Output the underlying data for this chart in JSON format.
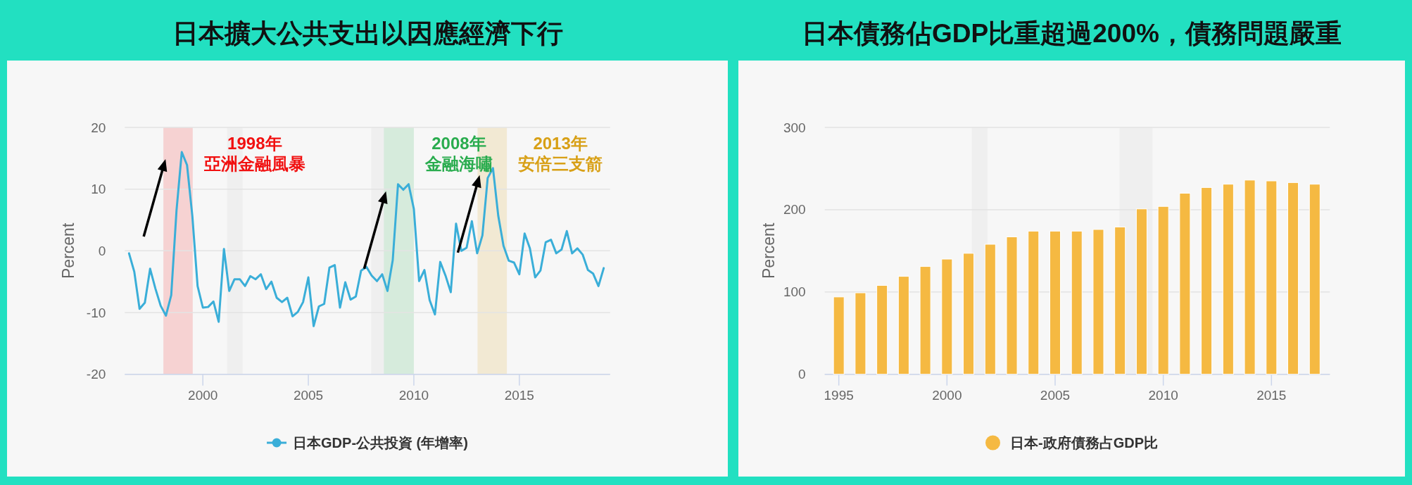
{
  "chart_data": [
    {
      "type": "line",
      "title": "日本擴大公共支出以因應經濟下行",
      "ylabel": "Percent",
      "legend": "bottom",
      "grid": "y",
      "x": [
        1996.5,
        1996.75,
        1997,
        1997.25,
        1997.5,
        1997.75,
        1998,
        1998.25,
        1998.5,
        1998.75,
        1999,
        1999.25,
        1999.5,
        1999.75,
        2000,
        2000.25,
        2000.5,
        2000.75,
        2001,
        2001.25,
        2001.5,
        2001.75,
        2002,
        2002.25,
        2002.5,
        2002.75,
        2003,
        2003.25,
        2003.5,
        2003.75,
        2004,
        2004.25,
        2004.5,
        2004.75,
        2005,
        2005.25,
        2005.5,
        2005.75,
        2006,
        2006.25,
        2006.5,
        2006.75,
        2007,
        2007.25,
        2007.5,
        2007.75,
        2008,
        2008.25,
        2008.5,
        2008.75,
        2009,
        2009.25,
        2009.5,
        2009.75,
        2010,
        2010.25,
        2010.5,
        2010.75,
        2011,
        2011.25,
        2011.5,
        2011.75,
        2012,
        2012.25,
        2012.5,
        2012.75,
        2013,
        2013.25,
        2013.5,
        2013.75,
        2014,
        2014.25,
        2014.5,
        2014.75,
        2015,
        2015.25,
        2015.5,
        2015.75,
        2016,
        2016.25,
        2016.5,
        2016.75,
        2017,
        2017.25,
        2017.5,
        2017.75,
        2018,
        2018.25,
        2018.5,
        2018.75,
        2019
      ],
      "series": [
        {
          "name": "日本GDP-公共投資 (年增率)",
          "color": "#3aaed8",
          "values": [
            -0.4,
            -3.4,
            -9.4,
            -8.4,
            -2.9,
            -6.1,
            -8.9,
            -10.5,
            -7.2,
            6.5,
            16.0,
            13.9,
            5.7,
            -5.7,
            -9.2,
            -9.1,
            -8.2,
            -11.5,
            0.3,
            -6.5,
            -4.6,
            -4.6,
            -5.7,
            -4.1,
            -4.6,
            -3.8,
            -6.2,
            -5.0,
            -7.6,
            -8.3,
            -7.6,
            -10.6,
            -9.9,
            -8.3,
            -4.3,
            -12.2,
            -9.0,
            -8.6,
            -2.7,
            -2.3,
            -9.2,
            -5.1,
            -7.9,
            -7.4,
            -3.2,
            -2.6,
            -4.0,
            -4.9,
            -3.8,
            -6.5,
            -1.5,
            10.8,
            9.9,
            10.8,
            6.8,
            -4.9,
            -3.1,
            -8.0,
            -10.3,
            -1.8,
            -4.0,
            -6.7,
            4.4,
            0.0,
            0.5,
            4.8,
            -0.4,
            2.5,
            11.8,
            13.4,
            5.7,
            0.8,
            -1.6,
            -1.9,
            -3.8,
            2.8,
            0.4,
            -4.3,
            -3.2,
            1.4,
            1.8,
            -0.4,
            0.2,
            3.2,
            -0.4,
            0.4,
            -0.6,
            -3.1,
            -3.7,
            -5.7,
            -2.8
          ]
        }
      ],
      "xlim": [
        1996.3,
        2019.3
      ],
      "xticks": [
        2000,
        2005,
        2010,
        2015
      ],
      "ylim": [
        -20,
        20
      ],
      "yticks": [
        -20,
        -10,
        0,
        10,
        20
      ],
      "bands": [
        {
          "axis": "x",
          "from": 1998.13,
          "to": 1999.52,
          "label": "1998年亞洲金融風暴",
          "color": "#f6d2d2"
        },
        {
          "axis": "x",
          "from": 2001.15,
          "to": 2001.88,
          "color": "#efefef"
        },
        {
          "axis": "x",
          "from": 2007.98,
          "to": 2009.5,
          "color": "#efefef"
        },
        {
          "axis": "x",
          "from": 2008.58,
          "to": 2010.0,
          "label": "2008年金融海嘯",
          "color": "#d6ebdc"
        },
        {
          "axis": "x",
          "from": 2013.02,
          "to": 2014.41,
          "label": "2013年安倍三支箭",
          "color": "#f2e9d3"
        }
      ]
    },
    {
      "type": "bar",
      "title": "日本債務佔GDP比重超過200%，債務問題嚴重",
      "ylabel": "Percent",
      "legend": "bottom",
      "grid": "y",
      "x": [
        1995,
        1996,
        1997,
        1998,
        1999,
        2000,
        2001,
        2002,
        2003,
        2004,
        2005,
        2006,
        2007,
        2008,
        2009,
        2010,
        2011,
        2012,
        2013,
        2014,
        2015,
        2016,
        2017
      ],
      "series": [
        {
          "name": "日本-政府債務占GDP比",
          "color": "#f5b942",
          "values": [
            94,
            99,
            108,
            119,
            131,
            140,
            147,
            158,
            167,
            174,
            174,
            174,
            176,
            179,
            201,
            204,
            220,
            227,
            231,
            236,
            235,
            233,
            231
          ]
        }
      ],
      "xlim": [
        1994.35,
        2017.7
      ],
      "xticks": [
        1995,
        2000,
        2005,
        2010,
        2015
      ],
      "ylim": [
        0,
        300
      ],
      "yticks": [
        0,
        100,
        200,
        300
      ],
      "bands": [
        {
          "axis": "x",
          "from": 2001.15,
          "to": 2001.88,
          "color": "#efefef"
        },
        {
          "axis": "x",
          "from": 2007.98,
          "to": 2009.5,
          "color": "#efefef"
        }
      ]
    }
  ]
}
